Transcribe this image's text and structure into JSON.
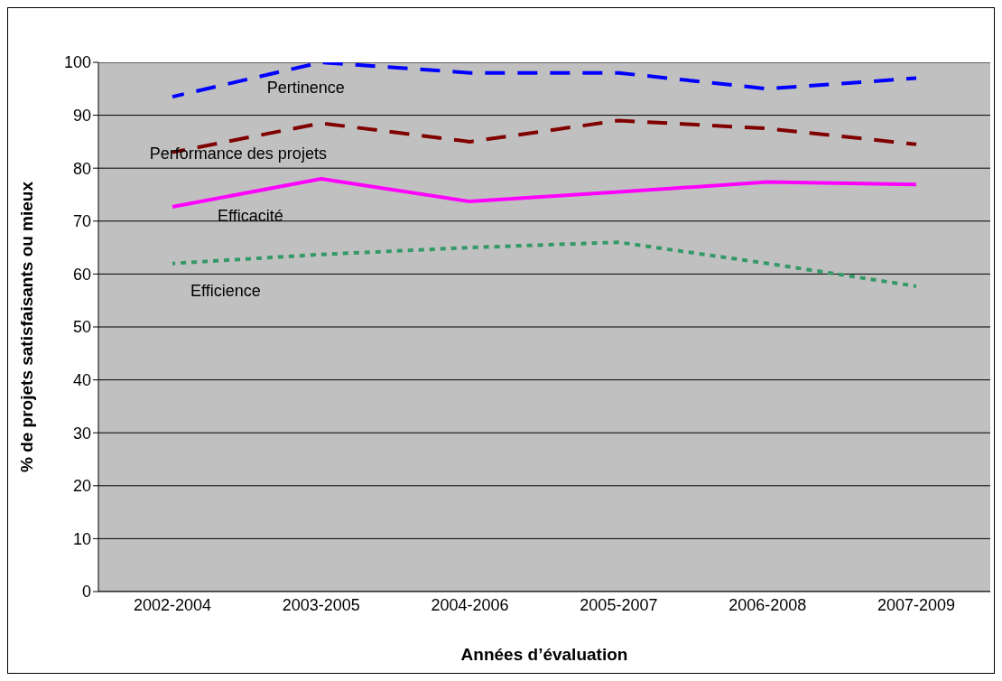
{
  "chart_data": {
    "type": "line",
    "xlabel": "Années d’évaluation",
    "ylabel": "% de projets satisfaisants ou mieux",
    "categories": [
      "2002-2004",
      "2003-2005",
      "2004-2006",
      "2005-2007",
      "2006-2008",
      "2007-2009"
    ],
    "series": [
      {
        "name": "Pertinence",
        "color": "#0000ff",
        "line_style": "dashed",
        "values": [
          93.5,
          100,
          98,
          98,
          95,
          97
        ]
      },
      {
        "name": "Performance des projets",
        "color": "#800000",
        "line_style": "dashed",
        "values": [
          83,
          88.5,
          85,
          89,
          87.5,
          84.5
        ]
      },
      {
        "name": "Efficacité",
        "color": "#ff00ff",
        "line_style": "solid",
        "values": [
          72.7,
          78,
          73.7,
          75.5,
          77.4,
          76.9
        ]
      },
      {
        "name": "Efficience",
        "color": "#339966",
        "line_style": "dotted",
        "values": [
          62,
          63.7,
          65,
          66,
          62,
          57.7
        ]
      }
    ],
    "ylim": [
      0,
      100
    ],
    "yticks": [
      0,
      10,
      20,
      30,
      40,
      50,
      60,
      70,
      80,
      90,
      100
    ],
    "grid": "y",
    "marker": "none"
  }
}
